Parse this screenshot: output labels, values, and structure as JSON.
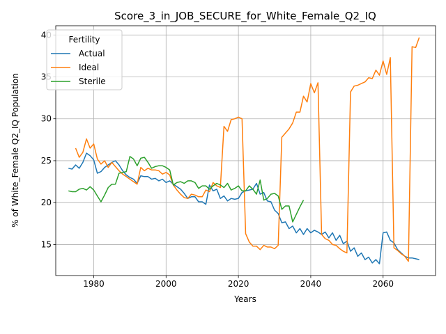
{
  "chart_data": {
    "type": "line",
    "title": "Score_3_in_JOB_SECURE_for_White_Female_Q2_IQ",
    "xlabel": "Years",
    "ylabel": "% of White_Female Q2_IQ Population",
    "xlim": [
      1969.5,
      2074.5
    ],
    "ylim": [
      11.3,
      41.1
    ],
    "x_ticks": [
      1980,
      2000,
      2020,
      2040,
      2060
    ],
    "y_ticks": [
      15,
      20,
      25,
      30,
      35,
      40
    ],
    "grid": true,
    "legend": {
      "title": "Fertility",
      "placement": "top-left"
    },
    "series": [
      {
        "name": "Actual",
        "color": "#1f77b4",
        "x": [
          1973,
          1974,
          1975,
          1976,
          1977,
          1978,
          1979,
          1980,
          1981,
          1982,
          1983,
          1984,
          1985,
          1986,
          1987,
          1988,
          1989,
          1990,
          1991,
          1992,
          1993,
          1994,
          1995,
          1996,
          1997,
          1998,
          1999,
          2000,
          2001,
          2002,
          2003,
          2004,
          2005,
          2006,
          2007,
          2008,
          2009,
          2010,
          2011,
          2012,
          2013,
          2014,
          2015,
          2016,
          2017,
          2018,
          2019,
          2020,
          2021,
          2022,
          2023,
          2024,
          2025,
          2026,
          2027,
          2028,
          2029,
          2030,
          2031,
          2032,
          2033,
          2034,
          2035,
          2036,
          2037,
          2038,
          2039,
          2040,
          2041,
          2042,
          2043,
          2044,
          2045,
          2046,
          2047,
          2048,
          2049,
          2050,
          2051,
          2052,
          2053,
          2054,
          2055,
          2056,
          2057,
          2058,
          2059,
          2060,
          2061,
          2062,
          2063,
          2064,
          2065,
          2066,
          2067,
          2068,
          2069,
          2070
        ],
        "values": [
          24.1,
          24.0,
          24.5,
          24.1,
          24.8,
          25.9,
          25.6,
          25.1,
          23.5,
          23.7,
          24.2,
          24.5,
          24.8,
          25.0,
          24.5,
          23.8,
          23.3,
          23.0,
          22.8,
          22.3,
          23.2,
          23.1,
          23.1,
          22.8,
          22.9,
          22.6,
          22.8,
          22.4,
          22.6,
          22.2,
          21.9,
          21.6,
          21.1,
          20.5,
          20.7,
          20.7,
          20.1,
          20.1,
          19.8,
          22.1,
          21.4,
          21.6,
          20.5,
          20.8,
          20.2,
          20.5,
          20.4,
          20.5,
          21.2,
          21.4,
          21.5,
          21.6,
          22.3,
          21.0,
          21.2,
          20.2,
          20.1,
          19.1,
          18.7,
          17.6,
          17.7,
          16.9,
          17.2,
          16.4,
          16.9,
          16.2,
          16.9,
          16.4,
          16.7,
          16.5,
          16.2,
          16.5,
          15.8,
          16.4,
          15.5,
          16.1,
          15.1,
          15.4,
          14.2,
          14.6,
          13.6,
          14.0,
          13.2,
          13.5,
          12.8,
          13.2,
          12.7,
          16.4,
          16.5,
          15.5,
          15.2,
          14.4,
          14.0,
          13.6,
          13.4,
          13.4,
          13.3,
          13.2
        ]
      },
      {
        "name": "Ideal",
        "color": "#ff7f0e",
        "x": [
          1975,
          1976,
          1977,
          1978,
          1979,
          1980,
          1981,
          1982,
          1983,
          1984,
          1985,
          1986,
          1987,
          1988,
          1989,
          1990,
          1991,
          1992,
          1993,
          1994,
          1995,
          1996,
          1997,
          1998,
          1999,
          2000,
          2001,
          2002,
          2003,
          2004,
          2005,
          2006,
          2007,
          2008,
          2009,
          2010,
          2011,
          2012,
          2013,
          2014,
          2015,
          2016,
          2017,
          2018,
          2019,
          2020,
          2021,
          2022,
          2023,
          2024,
          2025,
          2026,
          2027,
          2028,
          2029,
          2030,
          2031,
          2032,
          2033,
          2034,
          2035,
          2036,
          2037,
          2038,
          2039,
          2040,
          2041,
          2042,
          2043,
          2044,
          2045,
          2046,
          2047,
          2048,
          2049,
          2050,
          2051,
          2052,
          2053,
          2054,
          2055,
          2056,
          2057,
          2058,
          2059,
          2060,
          2061,
          2062,
          2063,
          2064,
          2065,
          2066,
          2067,
          2068,
          2069,
          2070
        ],
        "values": [
          26.5,
          25.4,
          26.0,
          27.6,
          26.5,
          27.0,
          25.2,
          24.6,
          25.0,
          24.2,
          24.8,
          24.3,
          23.8,
          23.4,
          23.1,
          22.8,
          22.5,
          22.2,
          24.2,
          23.8,
          24.1,
          23.9,
          23.9,
          23.8,
          23.4,
          23.6,
          23.3,
          22.1,
          21.5,
          21.0,
          20.6,
          20.5,
          21.0,
          20.9,
          20.7,
          20.7,
          21.5,
          21.3,
          22.4,
          22.0,
          21.8,
          29.1,
          28.5,
          29.9,
          30.0,
          30.2,
          30.0,
          16.3,
          15.3,
          14.8,
          14.8,
          14.4,
          14.9,
          14.7,
          14.7,
          14.5,
          14.9,
          27.8,
          28.3,
          28.8,
          29.5,
          30.8,
          30.8,
          32.7,
          32.0,
          34.2,
          33.1,
          34.3,
          16.2,
          15.7,
          15.5,
          15.0,
          14.9,
          14.5,
          14.2,
          14.0,
          33.2,
          33.9,
          34.0,
          34.2,
          34.4,
          34.9,
          34.8,
          35.8,
          35.2,
          36.9,
          35.3,
          37.3,
          14.6,
          14.3,
          13.9,
          13.6,
          13.0,
          38.6,
          38.5,
          39.7
        ]
      },
      {
        "name": "Sterile",
        "color": "#2ca02c",
        "x": [
          1973,
          1974,
          1975,
          1976,
          1977,
          1978,
          1979,
          1980,
          1981,
          1982,
          1983,
          1984,
          1985,
          1986,
          1987,
          1988,
          1989,
          1990,
          1991,
          1992,
          1993,
          1994,
          1995,
          1996,
          1997,
          1998,
          1999,
          2000,
          2001,
          2002,
          2003,
          2004,
          2005,
          2006,
          2007,
          2008,
          2009,
          2010,
          2011,
          2012,
          2013,
          2014,
          2015,
          2016,
          2017,
          2018,
          2019,
          2020,
          2021,
          2022,
          2023,
          2024,
          2025,
          2026,
          2027,
          2028,
          2029,
          2030,
          2031,
          2032,
          2033,
          2034,
          2035,
          2036,
          2037,
          2038
        ],
        "values": [
          21.4,
          21.3,
          21.3,
          21.6,
          21.7,
          21.5,
          21.9,
          21.5,
          20.8,
          20.1,
          20.9,
          21.8,
          22.2,
          22.2,
          23.5,
          23.6,
          23.7,
          25.5,
          25.2,
          24.4,
          25.3,
          25.4,
          24.8,
          24.1,
          24.3,
          24.4,
          24.4,
          24.2,
          23.9,
          22.1,
          22.4,
          22.5,
          22.3,
          22.6,
          22.6,
          22.4,
          21.7,
          22.0,
          22.0,
          21.6,
          22.0,
          22.3,
          22.1,
          21.8,
          22.3,
          21.5,
          21.7,
          22.0,
          21.4,
          21.4,
          22.0,
          21.6,
          21.0,
          22.7,
          20.3,
          20.5,
          21.0,
          21.1,
          20.8,
          19.2,
          19.6,
          19.6,
          17.7,
          18.6,
          19.5,
          20.3
        ]
      }
    ]
  }
}
